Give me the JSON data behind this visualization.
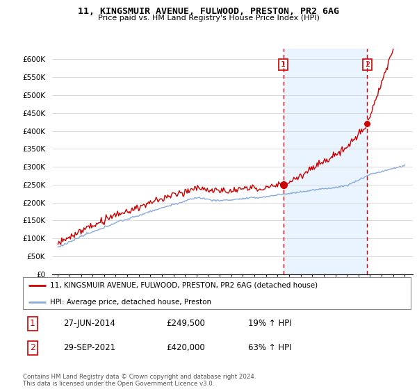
{
  "title": "11, KINGSMUIR AVENUE, FULWOOD, PRESTON, PR2 6AG",
  "subtitle": "Price paid vs. HM Land Registry's House Price Index (HPI)",
  "hpi_color": "#88aadd",
  "price_color": "#cc0000",
  "vline_color": "#cc0000",
  "shade_color": "#ddeeff",
  "transaction1_date": 2014.5,
  "transaction1_price": 249500,
  "transaction1_label": "1",
  "transaction2_date": 2021.75,
  "transaction2_price": 420000,
  "transaction2_label": "2",
  "legend_label1": "11, KINGSMUIR AVENUE, FULWOOD, PRESTON, PR2 6AG (detached house)",
  "legend_label2": "HPI: Average price, detached house, Preston",
  "table_row1": [
    "1",
    "27-JUN-2014",
    "£249,500",
    "19% ↑ HPI"
  ],
  "table_row2": [
    "2",
    "29-SEP-2021",
    "£420,000",
    "63% ↑ HPI"
  ],
  "footnote": "Contains HM Land Registry data © Crown copyright and database right 2024.\nThis data is licensed under the Open Government Licence v3.0.",
  "background_color": "#ffffff",
  "grid_color": "#cccccc",
  "yticks": [
    0,
    50000,
    100000,
    150000,
    200000,
    250000,
    300000,
    350000,
    400000,
    450000,
    500000,
    550000,
    600000
  ],
  "ytick_labels": [
    "£0",
    "£50K",
    "£100K",
    "£150K",
    "£200K",
    "£250K",
    "£300K",
    "£350K",
    "£400K",
    "£450K",
    "£500K",
    "£550K",
    "£600K"
  ]
}
